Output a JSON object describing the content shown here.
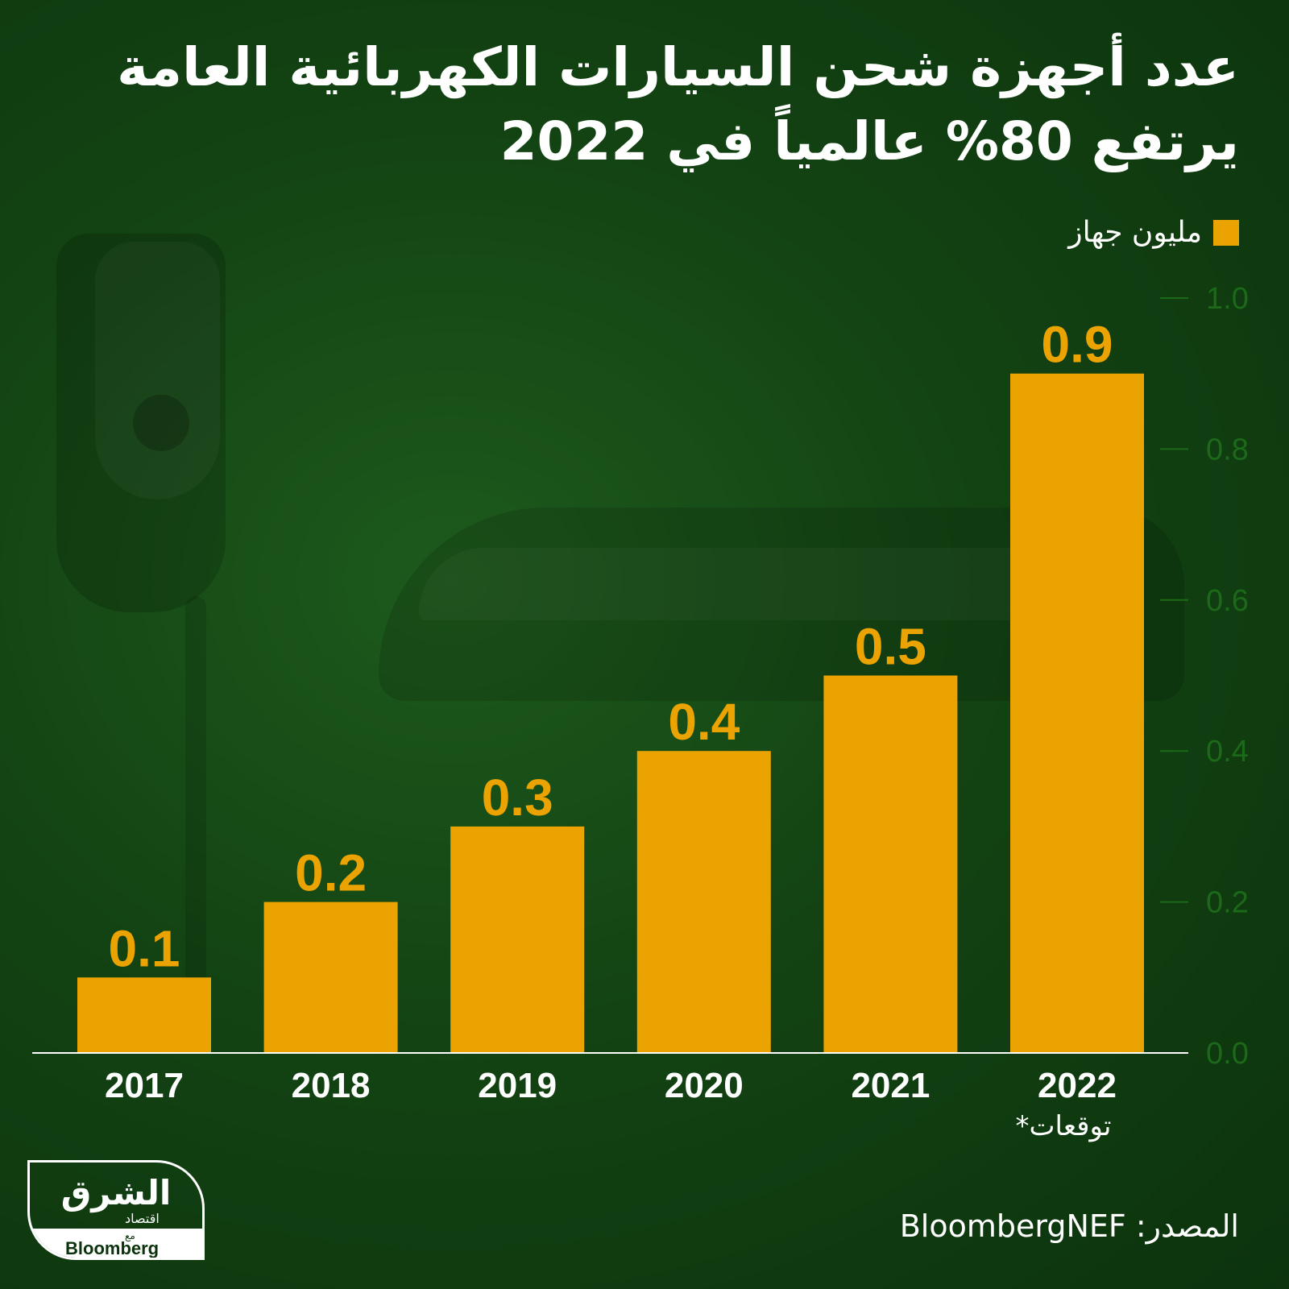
{
  "title": "عدد أجهزة شحن السيارات الكهربائية العامة يرتفع 80% عالمياً في 2022",
  "legend": {
    "label": "مليون جهاز",
    "color": "#eba302"
  },
  "forecast_note": "*توقعات",
  "source": "المصدر: BloombergNEF",
  "logo": {
    "name": "الشرق",
    "sub": "اقتصاد",
    "with": "مع",
    "partner": "Bloomberg"
  },
  "colors": {
    "background": "#134313",
    "bar": "#eba302",
    "grid": "#1c6a19",
    "text": "#ffffff"
  },
  "chart_data": {
    "type": "bar",
    "categories": [
      "2017",
      "2018",
      "2019",
      "2020",
      "2021",
      "2022"
    ],
    "values": [
      0.1,
      0.2,
      0.3,
      0.4,
      0.5,
      0.9
    ],
    "value_labels": [
      "0.1",
      "0.2",
      "0.3",
      "0.4",
      "0.5",
      "0.9"
    ],
    "title": "عدد أجهزة شحن السيارات الكهربائية العامة يرتفع 80% عالمياً في 2022",
    "ylabel": "مليون جهاز",
    "ylim": [
      0,
      1.0
    ],
    "yticks": [
      "0.0",
      "0.2",
      "0.4",
      "0.6",
      "0.8",
      "1.0"
    ],
    "y_axis_position": "right",
    "grid": false,
    "legend_position": "top-right"
  }
}
